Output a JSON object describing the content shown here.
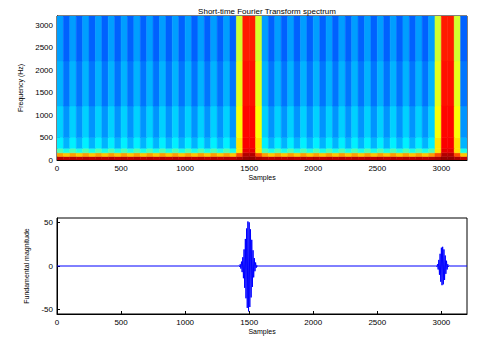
{
  "chart_data": [
    {
      "type": "heatmap",
      "title": "Short-time Fourier Transform spectrum",
      "xlabel": "Samples",
      "ylabel": "Frequency (Hz)",
      "xlim": [
        0,
        3200
      ],
      "ylim": [
        0,
        3200
      ],
      "xticks": [
        0,
        500,
        1000,
        1500,
        2000,
        2500,
        3000
      ],
      "yticks": [
        0,
        500,
        1000,
        1500,
        2000,
        2500,
        3000
      ],
      "grid": false,
      "x_edges": [
        0,
        50,
        100,
        150,
        200,
        250,
        300,
        350,
        400,
        450,
        500,
        550,
        600,
        650,
        700,
        750,
        800,
        850,
        900,
        950,
        1000,
        1050,
        1100,
        1150,
        1200,
        1250,
        1300,
        1350,
        1400,
        1450,
        1500,
        1550,
        1600,
        1650,
        1700,
        1750,
        1800,
        1850,
        1900,
        1950,
        2000,
        2050,
        2100,
        2150,
        2200,
        2250,
        2300,
        2350,
        2400,
        2450,
        2500,
        2550,
        2600,
        2650,
        2700,
        2750,
        2800,
        2850,
        2900,
        2950,
        3000,
        3050,
        3100,
        3150,
        3200
      ],
      "y_edges": [
        0,
        80,
        160,
        260,
        500,
        1200,
        2200,
        3200
      ],
      "clim": [
        0,
        100
      ],
      "cells": [
        [
          95,
          94,
          95,
          94,
          95,
          94,
          95,
          94,
          95,
          94,
          95,
          94,
          95,
          94,
          95,
          94,
          95,
          94,
          95,
          94,
          95,
          94,
          95,
          94,
          95,
          94,
          95,
          94,
          96,
          98,
          98,
          96,
          95,
          94,
          95,
          94,
          95,
          94,
          95,
          94,
          95,
          94,
          95,
          94,
          95,
          94,
          95,
          94,
          95,
          94,
          95,
          94,
          95,
          94,
          95,
          94,
          95,
          94,
          95,
          96,
          98,
          98,
          96,
          94
        ],
        [
          72,
          68,
          72,
          68,
          72,
          68,
          72,
          68,
          72,
          68,
          72,
          68,
          72,
          68,
          72,
          68,
          72,
          68,
          72,
          68,
          72,
          68,
          72,
          68,
          72,
          68,
          72,
          68,
          80,
          95,
          95,
          80,
          72,
          68,
          72,
          68,
          72,
          68,
          72,
          68,
          72,
          68,
          72,
          68,
          72,
          68,
          72,
          68,
          72,
          68,
          72,
          68,
          72,
          68,
          72,
          68,
          72,
          68,
          72,
          80,
          95,
          95,
          80,
          68
        ],
        [
          45,
          40,
          45,
          40,
          45,
          40,
          45,
          40,
          45,
          40,
          45,
          40,
          45,
          40,
          45,
          40,
          45,
          40,
          45,
          40,
          45,
          40,
          45,
          40,
          45,
          40,
          45,
          40,
          65,
          90,
          90,
          65,
          45,
          40,
          45,
          40,
          45,
          40,
          45,
          40,
          45,
          40,
          45,
          40,
          45,
          40,
          45,
          40,
          45,
          40,
          45,
          40,
          45,
          40,
          45,
          40,
          45,
          40,
          45,
          65,
          90,
          90,
          65,
          40
        ],
        [
          36,
          30,
          36,
          30,
          36,
          30,
          36,
          30,
          36,
          30,
          36,
          30,
          36,
          30,
          36,
          30,
          36,
          30,
          36,
          30,
          36,
          30,
          36,
          30,
          36,
          30,
          36,
          30,
          65,
          88,
          88,
          65,
          36,
          30,
          36,
          30,
          36,
          30,
          36,
          30,
          36,
          30,
          36,
          30,
          36,
          30,
          36,
          30,
          36,
          30,
          36,
          30,
          36,
          30,
          36,
          30,
          36,
          30,
          36,
          65,
          88,
          88,
          65,
          30
        ],
        [
          33,
          27,
          33,
          27,
          33,
          27,
          33,
          27,
          33,
          27,
          33,
          27,
          33,
          27,
          33,
          27,
          33,
          27,
          33,
          27,
          33,
          27,
          33,
          27,
          33,
          27,
          33,
          27,
          62,
          87,
          87,
          62,
          33,
          27,
          33,
          27,
          33,
          27,
          33,
          27,
          33,
          27,
          33,
          27,
          33,
          27,
          33,
          27,
          33,
          27,
          33,
          27,
          33,
          27,
          33,
          27,
          33,
          27,
          33,
          62,
          87,
          87,
          62,
          27
        ],
        [
          30,
          24,
          30,
          24,
          30,
          24,
          30,
          24,
          30,
          24,
          30,
          24,
          30,
          24,
          30,
          24,
          30,
          24,
          30,
          24,
          30,
          24,
          30,
          24,
          30,
          24,
          30,
          24,
          60,
          86,
          86,
          60,
          30,
          24,
          30,
          24,
          30,
          24,
          30,
          24,
          30,
          24,
          30,
          24,
          30,
          24,
          30,
          24,
          30,
          24,
          30,
          24,
          30,
          24,
          30,
          24,
          30,
          24,
          30,
          60,
          86,
          86,
          60,
          24
        ],
        [
          28,
          22,
          28,
          22,
          28,
          22,
          28,
          22,
          28,
          22,
          28,
          22,
          28,
          22,
          28,
          22,
          28,
          22,
          28,
          22,
          28,
          22,
          28,
          22,
          28,
          22,
          28,
          22,
          58,
          85,
          85,
          58,
          28,
          22,
          28,
          22,
          28,
          22,
          28,
          22,
          28,
          22,
          28,
          22,
          28,
          22,
          28,
          22,
          28,
          22,
          28,
          22,
          28,
          22,
          28,
          22,
          28,
          22,
          28,
          58,
          85,
          85,
          58,
          22
        ]
      ]
    },
    {
      "type": "line",
      "xlabel": "Samples",
      "ylabel": "Fundamental magnitude",
      "xlim": [
        0,
        3200
      ],
      "ylim": [
        -55,
        55
      ],
      "xticks": [
        0,
        500,
        1000,
        1500,
        2000,
        2500,
        3000
      ],
      "yticks": [
        -50,
        0,
        50
      ],
      "grid": false,
      "color": "#0000ff",
      "x": [
        0,
        1415,
        1420,
        1425,
        1430,
        1435,
        1440,
        1445,
        1450,
        1455,
        1460,
        1465,
        1470,
        1475,
        1480,
        1485,
        1490,
        1495,
        1500,
        1505,
        1510,
        1515,
        1520,
        1525,
        1530,
        1535,
        1540,
        1545,
        1550,
        1555,
        1560,
        1565,
        1570,
        2955,
        2960,
        2965,
        2970,
        2975,
        2980,
        2985,
        2990,
        2995,
        3000,
        3005,
        3010,
        3015,
        3020,
        3025,
        3030,
        3035,
        3040,
        3045,
        3050,
        3055,
        3060,
        3065,
        3200
      ],
      "values": [
        0,
        0,
        0.5,
        -1,
        2,
        -3,
        5,
        -7,
        10,
        -14,
        19,
        -25,
        31,
        -37,
        43,
        -48,
        51,
        -52,
        50,
        -47,
        42,
        -36,
        30,
        -24,
        18,
        -13,
        9,
        -6,
        4,
        -2,
        1,
        -0.5,
        0,
        0,
        0.5,
        -1,
        2,
        -4,
        7,
        -10,
        14,
        -18,
        21,
        -22,
        22,
        -21,
        19,
        -16,
        12,
        -9,
        6,
        -4,
        2,
        -1,
        0.5,
        0,
        0
      ]
    }
  ]
}
